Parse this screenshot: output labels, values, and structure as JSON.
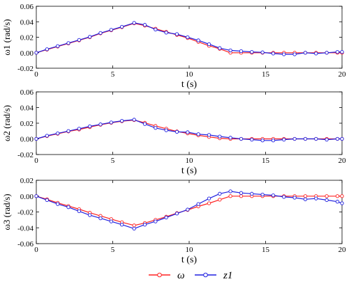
{
  "legend": {
    "items": [
      {
        "label": "ω",
        "color": "#ff2020"
      },
      {
        "label": "z1",
        "color": "#1f1fe0"
      }
    ]
  },
  "chart_data": [
    {
      "type": "line",
      "ylabel": "ω1 (rad/s)",
      "xlabel": "t (s)",
      "xlim": [
        0,
        20
      ],
      "ylim": [
        -0.02,
        0.06
      ],
      "xticks": [
        0,
        5,
        10,
        15,
        20
      ],
      "yticks": [
        -0.02,
        0.0,
        0.02,
        0.04,
        0.06
      ],
      "ytick_labels": [
        "-0.02",
        "0.00",
        "0.02",
        "0.04",
        "0.06"
      ],
      "series": [
        {
          "name": "ω",
          "color": "#ff2020",
          "x": [
            0,
            0.7,
            1.4,
            2.1,
            2.8,
            3.5,
            4.2,
            4.9,
            5.6,
            6.4,
            7.1,
            7.8,
            8.5,
            9.2,
            9.9,
            10.6,
            11.3,
            12.0,
            12.7,
            13.4,
            14.1,
            14.8,
            15.5,
            16.2,
            16.9,
            17.6,
            18.3,
            19.0,
            19.7,
            20
          ],
          "y": [
            0,
            0.004,
            0.008,
            0.012,
            0.016,
            0.02,
            0.025,
            0.029,
            0.033,
            0.038,
            0.035,
            0.031,
            0.027,
            0.023,
            0.019,
            0.014,
            0.009,
            0.005,
            0.0,
            0.0,
            0.0,
            0.0,
            0.0,
            0.0,
            0.0,
            0.0,
            0.0,
            0.0,
            0.0,
            0.0
          ]
        },
        {
          "name": "z1",
          "color": "#1f1fe0",
          "x": [
            0,
            0.7,
            1.4,
            2.1,
            2.8,
            3.5,
            4.2,
            4.9,
            5.6,
            6.4,
            7.1,
            7.8,
            8.5,
            9.2,
            9.9,
            10.6,
            11.3,
            12.0,
            12.7,
            13.4,
            14.1,
            14.8,
            15.5,
            16.2,
            16.9,
            17.6,
            18.3,
            19.0,
            19.7,
            20
          ],
          "y": [
            0,
            0.0045,
            0.0085,
            0.0125,
            0.0165,
            0.0205,
            0.0255,
            0.0295,
            0.0335,
            0.0385,
            0.036,
            0.03,
            0.026,
            0.024,
            0.02,
            0.016,
            0.011,
            0.006,
            0.003,
            0.002,
            0.001,
            0.0005,
            -0.001,
            -0.002,
            -0.002,
            0.0,
            -0.001,
            0.0,
            0.001,
            0.001
          ]
        }
      ]
    },
    {
      "type": "line",
      "ylabel": "ω2 (rad/s)",
      "xlabel": "t (s)",
      "xlim": [
        0,
        20
      ],
      "ylim": [
        -0.02,
        0.06
      ],
      "xticks": [
        0,
        5,
        10,
        15,
        20
      ],
      "yticks": [
        -0.02,
        0.0,
        0.02,
        0.04,
        0.06
      ],
      "ytick_labels": [
        "-0.02",
        "0.00",
        "0.02",
        "0.04",
        "0.06"
      ],
      "series": [
        {
          "name": "ω",
          "color": "#ff2020",
          "x": [
            0,
            0.7,
            1.4,
            2.1,
            2.8,
            3.5,
            4.2,
            4.9,
            5.6,
            6.4,
            7.1,
            7.8,
            8.5,
            9.2,
            9.9,
            10.6,
            11.3,
            12.0,
            12.7,
            13.4,
            14.1,
            14.8,
            15.5,
            16.2,
            16.9,
            17.6,
            18.3,
            19.0,
            19.7,
            20
          ],
          "y": [
            0,
            0.0035,
            0.0065,
            0.0095,
            0.012,
            0.015,
            0.018,
            0.0205,
            0.0225,
            0.024,
            0.0205,
            0.0165,
            0.013,
            0.0095,
            0.007,
            0.0045,
            0.0025,
            0.0008,
            0.0,
            0.0,
            0.0,
            0.0,
            0.0,
            0.0,
            0.0,
            0.0,
            0.0,
            0.0,
            0.0,
            0.0
          ]
        },
        {
          "name": "z1",
          "color": "#1f1fe0",
          "x": [
            0,
            0.7,
            1.4,
            2.1,
            2.8,
            3.5,
            4.2,
            4.9,
            5.6,
            6.4,
            7.1,
            7.8,
            8.5,
            9.2,
            9.9,
            10.6,
            11.3,
            12.0,
            12.7,
            13.4,
            14.1,
            14.8,
            15.5,
            16.2,
            16.9,
            17.6,
            18.3,
            19.0,
            19.7,
            20
          ],
          "y": [
            0,
            0.004,
            0.007,
            0.01,
            0.013,
            0.016,
            0.0185,
            0.021,
            0.023,
            0.0245,
            0.019,
            0.014,
            0.011,
            0.009,
            0.0085,
            0.006,
            0.005,
            0.003,
            0.0015,
            0.0,
            -0.001,
            -0.002,
            -0.002,
            -0.001,
            0.0,
            0.0,
            0.0,
            -0.001,
            0.0,
            0.0
          ]
        }
      ]
    },
    {
      "type": "line",
      "ylabel": "ω3 (rad/s)",
      "xlabel": "t (s)",
      "xlim": [
        0,
        20
      ],
      "ylim": [
        -0.06,
        0.02
      ],
      "xticks": [
        0,
        5,
        10,
        15,
        20
      ],
      "yticks": [
        -0.06,
        -0.04,
        -0.02,
        0.0,
        0.02
      ],
      "ytick_labels": [
        "-0.06",
        "-0.04",
        "-0.02",
        "0.00",
        "0.02"
      ],
      "series": [
        {
          "name": "ω",
          "color": "#ff2020",
          "x": [
            0,
            0.7,
            1.4,
            2.1,
            2.8,
            3.5,
            4.2,
            4.9,
            5.6,
            6.4,
            7.1,
            7.8,
            8.5,
            9.2,
            9.9,
            10.6,
            11.3,
            12.0,
            12.7,
            13.4,
            14.1,
            14.8,
            15.5,
            16.2,
            16.9,
            17.6,
            18.3,
            19.0,
            19.7,
            20
          ],
          "y": [
            0,
            -0.004,
            -0.0085,
            -0.0125,
            -0.0165,
            -0.021,
            -0.025,
            -0.029,
            -0.033,
            -0.037,
            -0.034,
            -0.03,
            -0.026,
            -0.0215,
            -0.0175,
            -0.013,
            -0.009,
            -0.0045,
            0.0,
            0.0,
            0.0,
            0.0,
            0.0,
            0.0,
            0.0,
            0.0,
            0.0,
            0.0,
            0.0,
            0.0
          ]
        },
        {
          "name": "z1",
          "color": "#1f1fe0",
          "x": [
            0,
            0.7,
            1.4,
            2.1,
            2.8,
            3.5,
            4.2,
            4.9,
            5.6,
            6.4,
            7.1,
            7.8,
            8.5,
            9.2,
            9.9,
            10.6,
            11.3,
            12.0,
            12.7,
            13.4,
            14.1,
            14.8,
            15.5,
            16.2,
            16.9,
            17.6,
            18.3,
            19.0,
            19.7,
            20
          ],
          "y": [
            0,
            -0.005,
            -0.01,
            -0.014,
            -0.019,
            -0.024,
            -0.028,
            -0.032,
            -0.036,
            -0.041,
            -0.036,
            -0.032,
            -0.027,
            -0.022,
            -0.017,
            -0.01,
            -0.003,
            0.003,
            0.006,
            0.004,
            0.003,
            0.002,
            0.001,
            -0.001,
            -0.002,
            -0.004,
            -0.003,
            -0.005,
            -0.007,
            -0.009
          ]
        }
      ]
    }
  ]
}
